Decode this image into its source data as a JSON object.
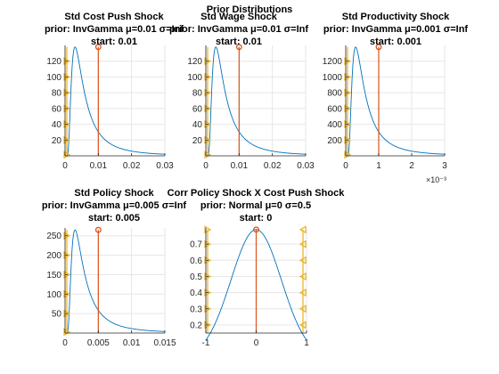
{
  "figure": {
    "title": "Prior Distributions",
    "colors": {
      "density": "#0072BD",
      "start_line": "#D95319",
      "markers": "#EDB120",
      "grid": "#e6e6e6",
      "axes": "#262626"
    }
  },
  "chart_data": [
    {
      "type": "line",
      "title_lines": [
        "Std Cost Push Shock",
        "prior: InvGamma μ=0.01 σ=Inf",
        "start: 0.01"
      ],
      "dist": "invgamma",
      "mode": 0.003,
      "peak": 138,
      "start": 0.01,
      "xlim": [
        0,
        0.03
      ],
      "ylim": [
        0,
        140
      ],
      "xticks": [
        0,
        0.01,
        0.02,
        0.03
      ],
      "xtick_labels": [
        "0",
        "0.01",
        "0.02",
        "0.03"
      ],
      "yticks": [
        20,
        40,
        60,
        80,
        100,
        120
      ],
      "ytick_labels": [
        "20",
        "40",
        "60",
        "80",
        "100",
        "120"
      ],
      "exponent_label": "",
      "marker_side": "left"
    },
    {
      "type": "line",
      "title_lines": [
        "Std Wage Shock",
        "prior: InvGamma μ=0.01 σ=Inf",
        "start: 0.01"
      ],
      "dist": "invgamma",
      "mode": 0.003,
      "peak": 138,
      "start": 0.01,
      "xlim": [
        0,
        0.03
      ],
      "ylim": [
        0,
        140
      ],
      "xticks": [
        0,
        0.01,
        0.02,
        0.03
      ],
      "xtick_labels": [
        "0",
        "0.01",
        "0.02",
        "0.03"
      ],
      "yticks": [
        20,
        40,
        60,
        80,
        100,
        120
      ],
      "ytick_labels": [
        "20",
        "40",
        "60",
        "80",
        "100",
        "120"
      ],
      "exponent_label": "",
      "marker_side": "left"
    },
    {
      "type": "line",
      "title_lines": [
        "Std Productivity Shock",
        "prior: InvGamma μ=0.001 σ=Inf",
        "start: 0.001"
      ],
      "dist": "invgamma",
      "mode": 0.3,
      "peak": 1380,
      "start": 1,
      "xlim": [
        0,
        3
      ],
      "ylim": [
        0,
        1400
      ],
      "xticks": [
        0,
        1,
        2,
        3
      ],
      "xtick_labels": [
        "0",
        "1",
        "2",
        "3"
      ],
      "yticks": [
        200,
        400,
        600,
        800,
        1000,
        1200
      ],
      "ytick_labels": [
        "200",
        "400",
        "600",
        "800",
        "1000",
        "1200"
      ],
      "exponent_label": "×10⁻³",
      "marker_side": "left"
    },
    {
      "type": "line",
      "title_lines": [
        "Std Policy Shock",
        "prior: InvGamma μ=0.005 σ=Inf",
        "start: 0.005"
      ],
      "dist": "invgamma",
      "mode": 0.0015,
      "peak": 265,
      "start": 0.005,
      "xlim": [
        0,
        0.015
      ],
      "ylim": [
        0,
        270
      ],
      "xticks": [
        0,
        0.005,
        0.01,
        0.015
      ],
      "xtick_labels": [
        "0",
        "0.005",
        "0.01",
        "0.015"
      ],
      "yticks": [
        50,
        100,
        150,
        200,
        250
      ],
      "ytick_labels": [
        "50",
        "100",
        "150",
        "200",
        "250"
      ],
      "exponent_label": "",
      "marker_side": "left"
    },
    {
      "type": "line",
      "title_lines": [
        "Corr Policy Shock X Cost Push Shock",
        "prior: Normal μ=0 σ=0.5",
        "start: 0"
      ],
      "dist": "normal",
      "mu": 0,
      "sigma": 0.5,
      "trunc": [
        -1,
        1
      ],
      "peak": 0.79,
      "start": 0,
      "xlim": [
        -1,
        1
      ],
      "ylim": [
        0.15,
        0.8
      ],
      "xticks": [
        -1,
        0,
        1
      ],
      "xtick_labels": [
        "-1",
        "0",
        "1"
      ],
      "yticks": [
        0.2,
        0.3,
        0.4,
        0.5,
        0.6,
        0.7
      ],
      "ytick_labels": [
        "0.2",
        "0.3",
        "0.4",
        "0.5",
        "0.6",
        "0.7"
      ],
      "exponent_label": "",
      "marker_side": "both"
    }
  ]
}
